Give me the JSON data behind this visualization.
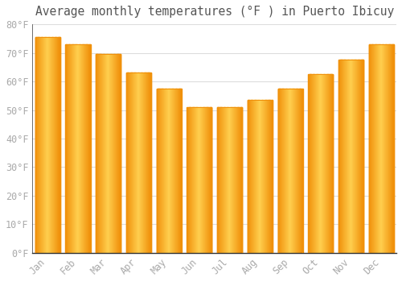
{
  "title": "Average monthly temperatures (°F ) in Puerto Ibicuy",
  "months": [
    "Jan",
    "Feb",
    "Mar",
    "Apr",
    "May",
    "Jun",
    "Jul",
    "Aug",
    "Sep",
    "Oct",
    "Nov",
    "Dec"
  ],
  "values": [
    75.5,
    73.0,
    69.5,
    63.0,
    57.5,
    51.0,
    51.0,
    53.5,
    57.5,
    62.5,
    67.5,
    73.0
  ],
  "bar_color_center": "#FFD050",
  "bar_color_edge": "#F0900A",
  "background_color": "#FFFFFF",
  "grid_color": "#DDDDDD",
  "ylim": [
    0,
    80
  ],
  "yticks": [
    0,
    10,
    20,
    30,
    40,
    50,
    60,
    70,
    80
  ],
  "ytick_labels": [
    "0°F",
    "10°F",
    "20°F",
    "30°F",
    "40°F",
    "50°F",
    "60°F",
    "70°F",
    "80°F"
  ],
  "title_fontsize": 10.5,
  "tick_fontsize": 8.5,
  "tick_color": "#AAAAAA",
  "spine_color": "#333333",
  "bar_width": 0.82
}
